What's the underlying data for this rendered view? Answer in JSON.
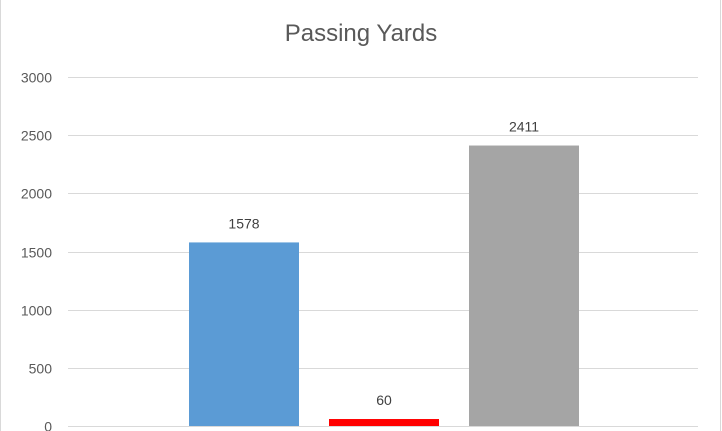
{
  "chart_data": {
    "type": "bar",
    "title": "Passing Yards",
    "xlabel": "",
    "ylabel": "",
    "categories": [
      "",
      "",
      ""
    ],
    "values": [
      1578,
      60,
      2411
    ],
    "colors": [
      "#5b9bd5",
      "#ff0000",
      "#a5a5a5"
    ],
    "data_labels": [
      "1578",
      "60",
      "2411"
    ],
    "ylim": [
      0,
      3000
    ],
    "yticks": [
      0,
      500,
      1000,
      1500,
      2000,
      2500,
      3000
    ],
    "ytick_labels": [
      "0",
      "500",
      "1000",
      "1500",
      "2000",
      "2500",
      "3000"
    ],
    "grid": true,
    "legend": "none"
  }
}
